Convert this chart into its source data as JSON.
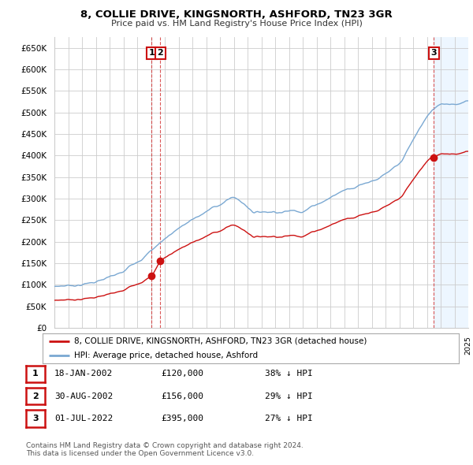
{
  "title": "8, COLLIE DRIVE, KINGSNORTH, ASHFORD, TN23 3GR",
  "subtitle": "Price paid vs. HM Land Registry's House Price Index (HPI)",
  "ylim": [
    0,
    675000
  ],
  "yticks": [
    0,
    50000,
    100000,
    150000,
    200000,
    250000,
    300000,
    350000,
    400000,
    450000,
    500000,
    550000,
    600000,
    650000
  ],
  "ytick_labels": [
    "£0",
    "£50K",
    "£100K",
    "£150K",
    "£200K",
    "£250K",
    "£300K",
    "£350K",
    "£400K",
    "£450K",
    "£500K",
    "£550K",
    "£600K",
    "£650K"
  ],
  "background_color": "#ffffff",
  "grid_color": "#cccccc",
  "hpi_color": "#7aa8d2",
  "price_color": "#cc1111",
  "shade_color": "#ddeeff",
  "transactions": [
    {
      "date": 2002.05,
      "price": 120000,
      "label": "1"
    },
    {
      "date": 2002.67,
      "price": 156000,
      "label": "2"
    },
    {
      "date": 2022.5,
      "price": 395000,
      "label": "3"
    }
  ],
  "legend_entries": [
    "8, COLLIE DRIVE, KINGSNORTH, ASHFORD, TN23 3GR (detached house)",
    "HPI: Average price, detached house, Ashford"
  ],
  "table_rows": [
    [
      "1",
      "18-JAN-2002",
      "£120,000",
      "38% ↓ HPI"
    ],
    [
      "2",
      "30-AUG-2002",
      "£156,000",
      "29% ↓ HPI"
    ],
    [
      "3",
      "01-JUL-2022",
      "£395,000",
      "27% ↓ HPI"
    ]
  ],
  "footnote": "Contains HM Land Registry data © Crown copyright and database right 2024.\nThis data is licensed under the Open Government Licence v3.0.",
  "xmin": 1995,
  "xmax": 2025
}
